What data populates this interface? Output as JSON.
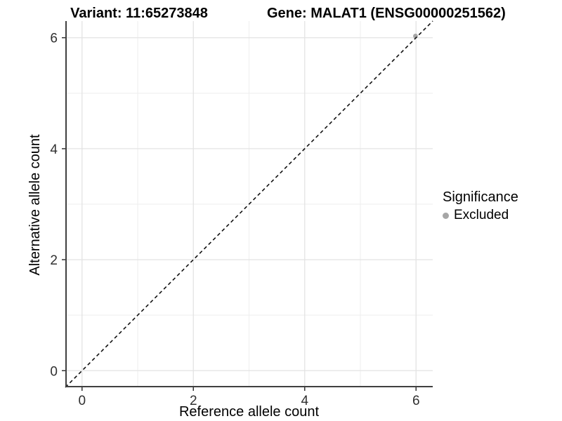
{
  "chart_data": {
    "type": "scatter",
    "title_variant": "Variant: 11:65273848",
    "title_gene": "Gene: MALAT1 (ENSG00000251562)",
    "xlabel": "Reference allele count",
    "ylabel": "Alternative allele count",
    "xlim": [
      -0.3,
      6.3
    ],
    "ylim": [
      -0.3,
      6.3
    ],
    "x_ticks": [
      0,
      2,
      4,
      6
    ],
    "y_ticks": [
      0,
      2,
      4,
      6
    ],
    "x_minor": [
      1,
      3,
      5
    ],
    "y_minor": [
      1,
      3,
      5
    ],
    "grid": true,
    "legend_position": "right",
    "legend": {
      "title": "Significance",
      "items": [
        {
          "label": "Excluded",
          "color": "#a6a6a6"
        }
      ]
    },
    "series": [
      {
        "name": "Excluded",
        "color": "#a6a6a6",
        "points": [
          {
            "x": 5.99,
            "y": 6.03
          }
        ]
      }
    ],
    "reference_line": {
      "kind": "identity",
      "style": "dashed",
      "from": [
        -0.3,
        -0.3
      ],
      "to": [
        6.3,
        6.3
      ]
    }
  },
  "colors": {
    "background": "#ffffff",
    "grid_major": "#e3e3e3",
    "grid_minor": "#eeeeee",
    "axis_line": "#404040",
    "tick_mark": "#333333",
    "tick_label": "#303030",
    "reference_line": "#111111",
    "point": "#a6a6a6",
    "text": "#000000"
  }
}
